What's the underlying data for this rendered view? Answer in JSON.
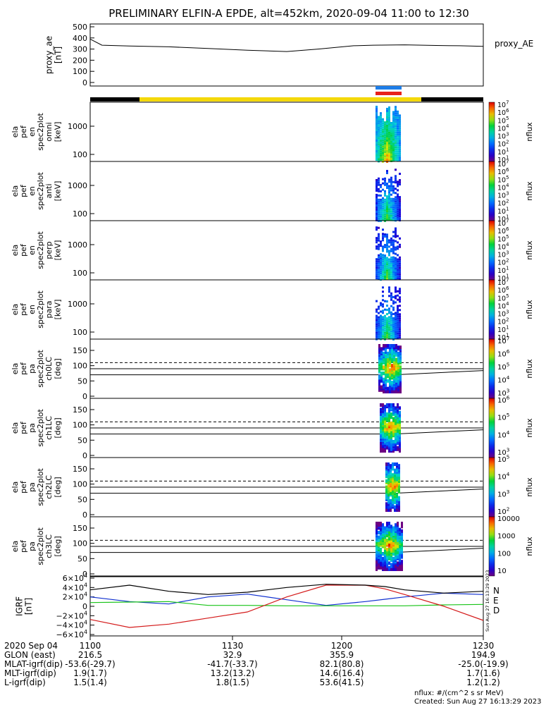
{
  "title": "PRELIMINARY ELFIN-A EPDE, alt=452km, 2020-09-04 11:00 to 12:30",
  "footer": {
    "nflux_units": "nflux: #/(cm^2 s sr MeV)",
    "created": "Created: Sun Aug 27 16:13:29 2023",
    "vertical_stamp": "Sun Aug 27 16:13:29 2023"
  },
  "colors": {
    "sunlit_bar": "#f4d80a",
    "shadow_bar": "#000000",
    "science_blue": "#1e7ee8",
    "science_red": "#e8211a",
    "grf_total": "#000000",
    "grf_N": "#1030d0",
    "grf_E": "#19c419",
    "grf_D": "#d41a1a"
  },
  "chart_data": [
    {
      "type": "line",
      "panel": "proxy_ae",
      "ylabel": [
        "proxy_ae",
        "[nT]"
      ],
      "right_label": "proxy_AE",
      "ylim": [
        0,
        500
      ],
      "yticks": [
        0,
        100,
        200,
        300,
        400,
        500
      ],
      "x": [
        0,
        0.03,
        0.1,
        0.2,
        0.3,
        0.4,
        0.5,
        0.58,
        0.67,
        0.72,
        0.8,
        0.88,
        0.94,
        1.0
      ],
      "series": [
        {
          "values": [
            390,
            335,
            328,
            320,
            305,
            290,
            278,
            300,
            330,
            335,
            338,
            332,
            330,
            325
          ]
        }
      ]
    },
    {
      "type": "heatmap",
      "panel": "spectrogram",
      "rows": [
        {
          "ylabel": [
            "ela",
            "pef",
            "en",
            "spec2plot",
            "omni",
            "[keV]"
          ],
          "yticks": [
            "100",
            "1000"
          ]
        },
        {
          "ylabel": [
            "ela",
            "pef",
            "en",
            "spec2plot",
            "anti",
            "[keV]"
          ],
          "yticks": [
            "100",
            "1000"
          ]
        },
        {
          "ylabel": [
            "ela",
            "pef",
            "en",
            "spec2plot",
            "perp",
            "[keV]"
          ],
          "yticks": [
            "100",
            "1000"
          ]
        },
        {
          "ylabel": [
            "ela",
            "pef",
            "en",
            "spec2plot",
            "para",
            "[keV]"
          ],
          "yticks": [
            "100",
            "1000"
          ]
        }
      ],
      "colorbar": {
        "label": "nflux",
        "ticks": [
          "10",
          "10",
          "10",
          "10",
          "10",
          "10",
          "10",
          "10"
        ],
        "exps": [
          "1",
          "1",
          "2",
          "3",
          "4",
          "5",
          "6",
          "7"
        ]
      }
    },
    {
      "type": "heatmap",
      "panel": "pitch_angle",
      "rows": [
        {
          "ylabel": [
            "ela",
            "pef",
            "pa",
            "spec2plot",
            "ch0LC",
            "[deg]"
          ],
          "yticks": [
            "0",
            "50",
            "100",
            "150"
          ],
          "colorbar": {
            "ticks": [
              "10",
              "10",
              "10",
              "10",
              "10"
            ],
            "exps": [
              "3",
              "4",
              "5",
              "6",
              "7"
            ]
          }
        },
        {
          "ylabel": [
            "ela",
            "pef",
            "pa",
            "spec2plot",
            "ch1LC",
            "[deg]"
          ],
          "yticks": [
            "0",
            "50",
            "100",
            "150"
          ],
          "colorbar": {
            "ticks": [
              "10",
              "10",
              "10",
              "10"
            ],
            "exps": [
              "3",
              "4",
              "5",
              "6"
            ]
          }
        },
        {
          "ylabel": [
            "ela",
            "pef",
            "pa",
            "spec2plot",
            "ch2LC",
            "[deg]"
          ],
          "yticks": [
            "0",
            "50",
            "100",
            "150"
          ],
          "colorbar": {
            "ticks": [
              "10",
              "10",
              "10",
              "10"
            ],
            "exps": [
              "2",
              "3",
              "4",
              "5"
            ]
          }
        },
        {
          "ylabel": [
            "ela",
            "pef",
            "pa",
            "spec2plot",
            "ch3LC",
            "[deg]"
          ],
          "yticks": [
            "0",
            "50",
            "100",
            "150"
          ],
          "colorbar": {
            "ticks": [
              "10",
              "100",
              "1000",
              "10000"
            ],
            "exps": [
              "",
              "",
              "",
              ""
            ]
          }
        }
      ],
      "colorbar_label": "nflux"
    },
    {
      "type": "line",
      "panel": "igrf",
      "ylabel": [
        "IGRF",
        "[nT]"
      ],
      "ylim": [
        -60000,
        60000
      ],
      "yticks": [
        "−6×10",
        "−4×10",
        "−2×10",
        "0",
        "2×10",
        "4×10",
        "6×10"
      ],
      "ytick_exp": "4",
      "x": [
        0,
        0.1,
        0.2,
        0.3,
        0.4,
        0.5,
        0.6,
        0.7,
        0.75,
        0.8,
        0.9,
        1.0
      ],
      "series": [
        {
          "name": "N",
          "values": [
            20000,
            10000,
            5000,
            20000,
            26000,
            14000,
            2000,
            10000,
            15000,
            20000,
            28000,
            25000
          ]
        },
        {
          "name": "E",
          "values": [
            8000,
            9000,
            10000,
            2000,
            2000,
            1000,
            1000,
            1000,
            1000,
            1000,
            3000,
            4000
          ]
        },
        {
          "name": "D",
          "values": [
            -28000,
            -45000,
            -38000,
            -25000,
            -12000,
            20000,
            45000,
            45000,
            37000,
            25000,
            0,
            -30000
          ]
        },
        {
          "values": [
            35000,
            45000,
            32000,
            25000,
            30000,
            40000,
            47000,
            45000,
            42000,
            35000,
            28000,
            32000
          ]
        }
      ]
    }
  ],
  "xaxis": {
    "row_labels": [
      "2020 Sep 04",
      "GLON (east)",
      "MLAT-igrf(dip)",
      "MLT-igrf(dip)",
      "L-igrf(dip)"
    ],
    "columns": [
      {
        "values": [
          "1100",
          "216.5",
          "-53.6(-29.7)",
          "1.9(1.7)",
          "1.5(1.4)"
        ]
      },
      {
        "values": [
          "1130",
          "32.9",
          "-41.7(-33.7)",
          "13.2(13.2)",
          "1.8(1.5)"
        ]
      },
      {
        "values": [
          "1200",
          "355.9",
          "82.1(80.8)",
          "14.6(16.4)",
          "53.6(41.5)"
        ]
      },
      {
        "values": [
          "1230",
          "194.9",
          "-25.0(-19.9)",
          "1.7(1.6)",
          "1.2(1.2)"
        ]
      }
    ]
  }
}
